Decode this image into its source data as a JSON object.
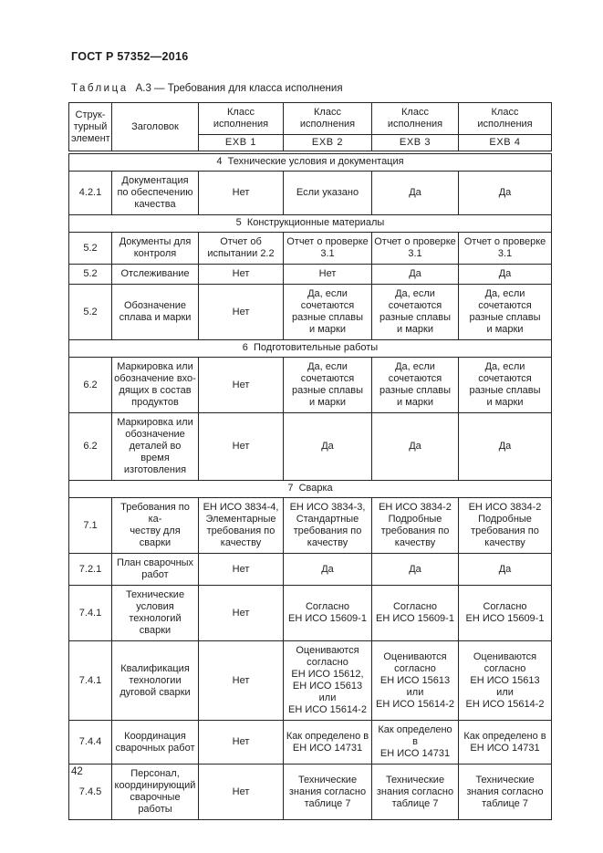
{
  "page": {
    "doc_header": "ГОСТ Р 57352—2016",
    "caption_label": "Таблица",
    "caption_text": "А.3 — Требования для класса исполнения",
    "page_number": "42"
  },
  "table": {
    "header": {
      "structural_element": "Струк-\nтурный\nэлемент",
      "heading": "Заголовок",
      "class_label": "Класс\nисполнения",
      "exb": [
        "EXB 1",
        "EXB 2",
        "EXB 3",
        "EXB 4"
      ]
    },
    "rows": [
      {
        "type": "section",
        "text": "4  Технические условия и документация"
      },
      {
        "type": "data",
        "code": "4.2.1",
        "title": "Документация\nпо обеспечению\nкачества",
        "cells": [
          "Нет",
          "Если указано",
          "Да",
          "Да"
        ]
      },
      {
        "type": "section",
        "text": "5  Конструкционные материалы"
      },
      {
        "type": "data",
        "code": "5.2",
        "title": "Документы для\nконтроля",
        "cells": [
          "Отчет об\nиспытании 2.2",
          "Отчет о проверке\n3.1",
          "Отчет о проверке\n3.1",
          "Отчет о проверке\n3.1"
        ]
      },
      {
        "type": "data",
        "code": "5.2",
        "title": "Отслеживание",
        "cells": [
          "Нет",
          "Нет",
          "Да",
          "Да"
        ]
      },
      {
        "type": "data",
        "code": "5.2",
        "title": "Обозначение\nсплава и марки",
        "cells": [
          "Нет",
          "Да, если\nсочетаются\nразные сплавы\nи марки",
          "Да, если\nсочетаются\nразные сплавы\nи марки",
          "Да, если\nсочетаются\nразные сплавы\nи марки"
        ]
      },
      {
        "type": "section",
        "text": "6  Подготовительные работы"
      },
      {
        "type": "data",
        "code": "6.2",
        "title": "Маркировка или\nобозначение вхо-\nдящих в состав\nпродуктов",
        "cells": [
          "Нет",
          "Да, если\nсочетаются\nразные сплавы\nи марки",
          "Да, если\nсочетаются\nразные сплавы\nи марки",
          "Да, если\nсочетаются\nразные сплавы\nи марки"
        ]
      },
      {
        "type": "data",
        "code": "6.2",
        "title": "Маркировка или\nобозначение\nдеталей во время\nизготовления",
        "cells": [
          "Нет",
          "Да",
          "Да",
          "Да"
        ]
      },
      {
        "type": "section",
        "text": "7  Сварка"
      },
      {
        "type": "data",
        "code": "7.1",
        "title": "Требования по ка-\nчеству для сварки",
        "cells": [
          "ЕН ИСО 3834-4,\nЭлементарные\nтребования по\nкачеству",
          "ЕН ИСО 3834-3,\nСтандартные\nтребования по\nкачеству",
          "ЕН ИСО 3834-2\nПодробные\nтребования по\nкачеству",
          "ЕН ИСО 3834-2\nПодробные\nтребования по\nкачеству"
        ]
      },
      {
        "type": "data",
        "code": "7.2.1",
        "title": "План сварочных\nработ",
        "cells": [
          "Нет",
          "Да",
          "Да",
          "Да"
        ]
      },
      {
        "type": "data",
        "code": "7.4.1",
        "title": "Технические\nусловия\nтехнологий сварки",
        "cells": [
          "Нет",
          "Согласно\nЕН ИСО 15609-1",
          "Согласно\nЕН ИСО 15609-1",
          "Согласно\nЕН ИСО 15609-1"
        ]
      },
      {
        "type": "data",
        "code": "7.4.1",
        "title": "Квалификация\nтехнологии\nдуговой сварки",
        "cells": [
          "Нет",
          "Оцениваются\nсогласно\nЕН ИСО 15612,\nЕН ИСО 15613\nили\nЕН ИСО 15614-2",
          "Оцениваются\nсогласно\nЕН ИСО 15613\nили\nЕН ИСО 15614-2",
          "Оцениваются\nсогласно\nЕН ИСО 15613\nили\nЕН ИСО 15614-2"
        ]
      },
      {
        "type": "data",
        "code": "7.4.4",
        "title": "Координация\nсварочных работ",
        "cells": [
          "Нет",
          "Как определено в\nЕН ИСО 14731",
          "Как определено в\nЕН ИСО 14731",
          "Как определено в\nЕН ИСО 14731"
        ]
      },
      {
        "type": "data",
        "code": "7.4.5",
        "title": "Персонал,\nкоординирующий\nсварочные работы",
        "cells": [
          "Нет",
          "Технические\nзнания согласно\nтаблице 7",
          "Технические\nзнания согласно\nтаблице 7",
          "Технические\nзнания согласно\nтаблице 7"
        ]
      }
    ]
  }
}
